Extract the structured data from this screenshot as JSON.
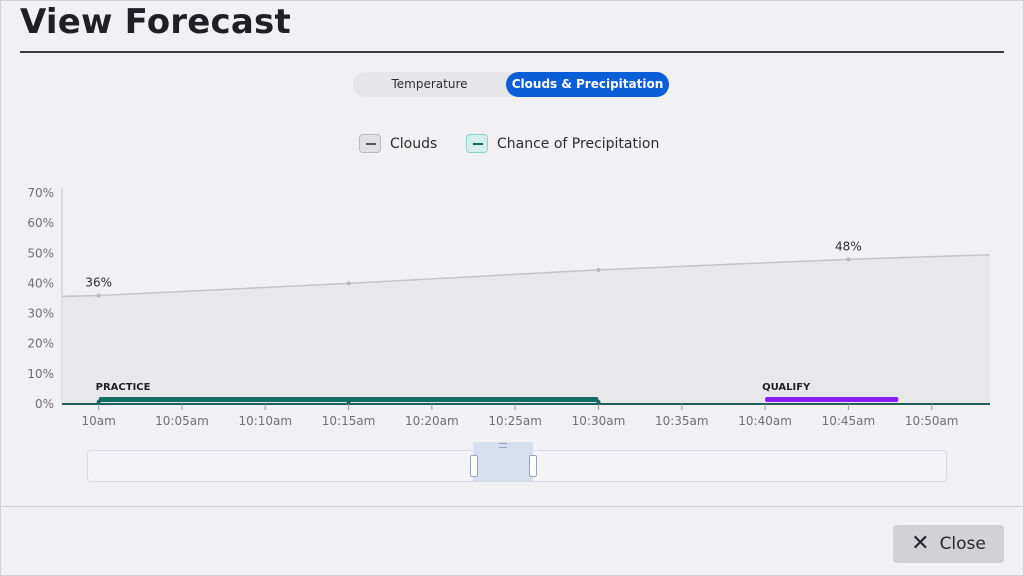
{
  "title": "View Forecast",
  "tabs": [
    {
      "label": "Temperature",
      "active": false
    },
    {
      "label": "Clouds & Precipitation",
      "active": true
    }
  ],
  "legend": [
    {
      "label": "Clouds",
      "icon": "minus-icon"
    },
    {
      "label": "Chance of Precipitation",
      "icon": "minus-icon"
    }
  ],
  "chart_data": {
    "type": "area",
    "y_ticks": [
      "70%",
      "60%",
      "50%",
      "40%",
      "30%",
      "20%",
      "10%",
      "0%"
    ],
    "ylim": [
      0,
      70
    ],
    "x_ticks": [
      "10am",
      "10:05am",
      "10:10am",
      "10:15am",
      "10:20am",
      "10:25am",
      "10:30am",
      "10:35am",
      "10:40am",
      "10:45am",
      "10:50am"
    ],
    "x_unit": "minutes after 10am",
    "xlim": [
      -2.2,
      53.5
    ],
    "series": [
      {
        "name": "Clouds",
        "color": "#c4c4c8",
        "x": [
          -2.2,
          0,
          15,
          30,
          45,
          53.5
        ],
        "values": [
          35.7,
          36,
          40,
          44.5,
          48,
          49.5
        ],
        "data_labels": [
          {
            "x": 0,
            "text": "36%"
          },
          {
            "x": 45,
            "text": "48%"
          }
        ]
      },
      {
        "name": "Chance of Precipitation",
        "color": "#17665f",
        "x": [
          0,
          15,
          30
        ],
        "values": [
          0,
          0,
          0
        ]
      }
    ],
    "sessions": [
      {
        "label": "PRACTICE",
        "start": 0,
        "end": 30,
        "color": "#0f6f62"
      },
      {
        "label": "QUALIFY",
        "start": 40,
        "end": 48,
        "color": "#8b1cf0"
      }
    ],
    "grid": false,
    "legend_position": "top-center"
  },
  "footer": {
    "close_label": "Close"
  },
  "colors": {
    "accent": "#0b5ed7",
    "practice": "#0f6f62",
    "qualify": "#8b1cf0"
  }
}
